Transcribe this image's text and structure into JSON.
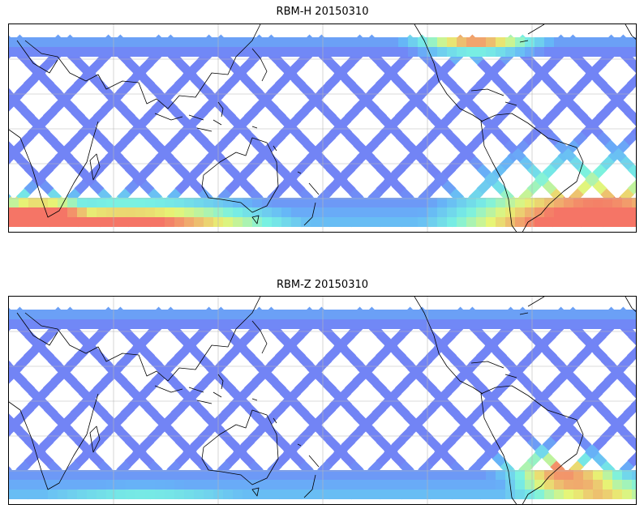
{
  "panels": [
    {
      "title": "RBM-H 20150310",
      "colormap": "jet",
      "swath_colors": {
        "low": "#6a6cf5",
        "mid_low": "#5ab0f7",
        "mid": "#6ef0e0",
        "mid_high": "#e6f56a",
        "high": "#f56a5a"
      },
      "high_regions": [
        "southern-ocean-indian",
        "south-atlantic",
        "north-pacific-east"
      ]
    },
    {
      "title": "RBM-Z 20150310",
      "colormap": "jet",
      "swath_colors": {
        "low": "#6a6cf5",
        "mid_low": "#5ab0f7",
        "mid": "#6ef0e0",
        "mid_high": "#e6f56a",
        "high": "#f56a5a"
      },
      "high_regions": [
        "south-atlantic"
      ]
    }
  ],
  "gridlines": true,
  "coastlines": true
}
